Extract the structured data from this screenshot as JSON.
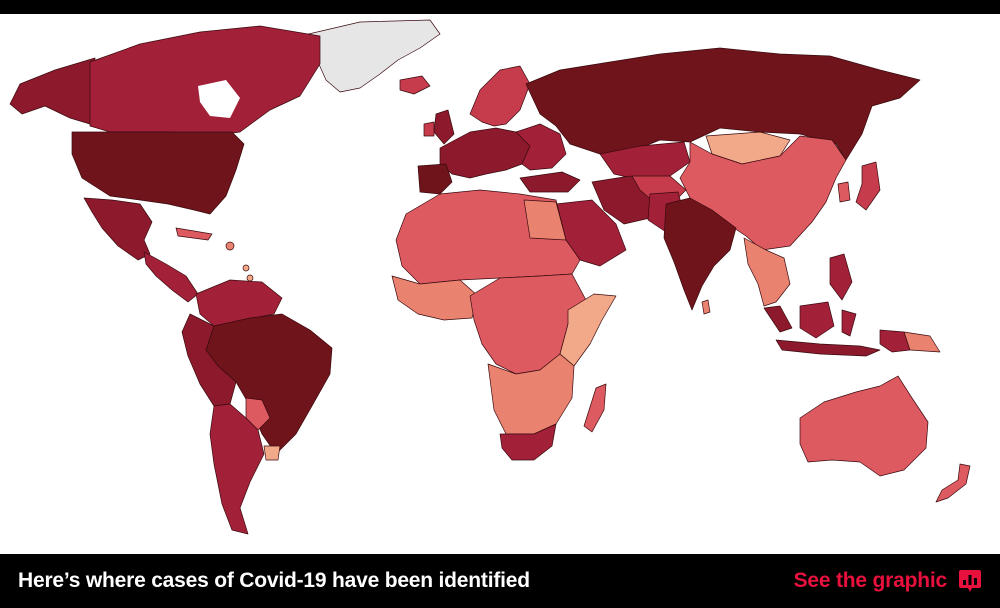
{
  "footer": {
    "headline": "Here’s where cases of Covid-19 have been identified",
    "cta_label": "See the graphic",
    "cta_icon": "bar-chart-icon"
  },
  "colors": {
    "darkest": "#6e141a",
    "dark": "#8c1a2c",
    "mid_dark": "#a32039",
    "mid": "#c63c4c",
    "light": "#dd5a60",
    "lighter": "#e9836f",
    "lightest": "#f2a98a",
    "no_data": "#e8e8e8",
    "accent": "#e8113d",
    "footer_bg": "#000000"
  }
}
